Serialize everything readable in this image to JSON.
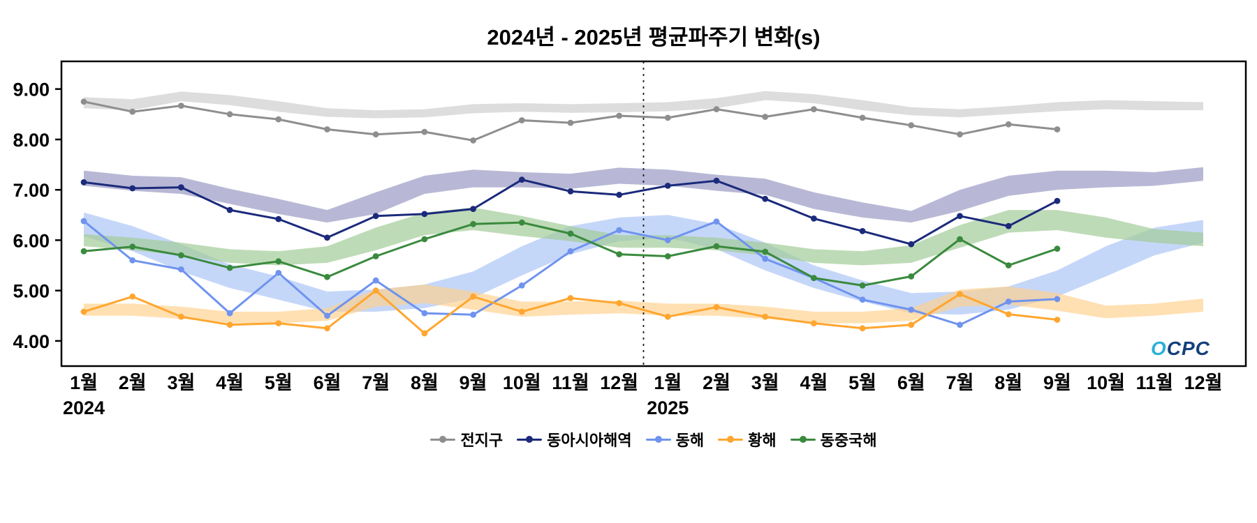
{
  "title": "2024년 - 2025년 평균파주기 변화(s)",
  "logo": {
    "text_o": "O",
    "text_cpc": "CPC"
  },
  "chart_data": {
    "type": "line",
    "title": "2024년 - 2025년 평균파주기 변화(s)",
    "xlabel": "",
    "ylabel": "",
    "x_labels": [
      "1월",
      "2월",
      "3월",
      "4월",
      "5월",
      "6월",
      "7월",
      "8월",
      "9월",
      "10월",
      "11월",
      "12월",
      "1월",
      "2월",
      "3월",
      "4월",
      "5월",
      "6월",
      "7월",
      "8월",
      "9월",
      "10월",
      "11월",
      "12월"
    ],
    "year_labels": [
      {
        "text": "2024",
        "month_index": 0
      },
      {
        "text": "2025",
        "month_index": 12
      }
    ],
    "ylim": [
      3.5,
      9.55
    ],
    "yticks": [
      4,
      5,
      6,
      7,
      8,
      9
    ],
    "ytick_labels": [
      "4.00",
      "5.00",
      "6.00",
      "7.00",
      "8.00",
      "9.00"
    ],
    "divider_index": 11.5,
    "legend_position": "bottom",
    "grid": false,
    "series": [
      {
        "id": "global",
        "name": "전지구",
        "color": "#8e8e8e",
        "band_color": "#d9d9d9",
        "band_opacity": 0.9,
        "values": [
          8.75,
          8.55,
          8.67,
          8.5,
          8.4,
          8.2,
          8.1,
          8.15,
          7.98,
          8.38,
          8.33,
          8.47,
          8.43,
          8.6,
          8.45,
          8.6,
          8.43,
          8.28,
          8.1,
          8.3,
          8.2,
          null,
          null,
          null
        ],
        "band_lower": [
          8.62,
          8.58,
          8.76,
          8.68,
          8.55,
          8.45,
          8.42,
          8.44,
          8.52,
          8.55,
          8.53,
          8.54,
          8.56,
          8.62,
          8.78,
          8.72,
          8.58,
          8.48,
          8.44,
          8.5,
          8.56,
          8.6,
          8.58,
          8.58
        ],
        "band_upper": [
          8.84,
          8.8,
          8.95,
          8.88,
          8.76,
          8.62,
          8.58,
          8.6,
          8.7,
          8.72,
          8.7,
          8.72,
          8.74,
          8.82,
          8.96,
          8.9,
          8.78,
          8.64,
          8.6,
          8.66,
          8.74,
          8.78,
          8.76,
          8.74
        ]
      },
      {
        "id": "east-asia",
        "name": "동아시아해역",
        "color": "#1b2a7b",
        "band_color": "#8888bb",
        "band_opacity": 0.6,
        "values": [
          7.15,
          7.03,
          7.05,
          6.6,
          6.42,
          6.05,
          6.48,
          6.52,
          6.62,
          7.2,
          6.97,
          6.9,
          7.08,
          7.18,
          6.82,
          6.43,
          6.18,
          5.92,
          6.48,
          6.28,
          6.78,
          null,
          null,
          null
        ],
        "band_lower": [
          7.08,
          6.98,
          6.92,
          6.72,
          6.52,
          6.35,
          6.52,
          6.92,
          7.05,
          7.05,
          7.02,
          7.12,
          7.08,
          6.98,
          6.9,
          6.62,
          6.45,
          6.35,
          6.58,
          6.88,
          7.0,
          7.05,
          7.08,
          7.18
        ],
        "band_upper": [
          7.38,
          7.28,
          7.25,
          7.02,
          6.82,
          6.6,
          6.95,
          7.28,
          7.4,
          7.35,
          7.32,
          7.44,
          7.4,
          7.3,
          7.22,
          6.95,
          6.75,
          6.58,
          7.0,
          7.28,
          7.38,
          7.38,
          7.35,
          7.45
        ]
      },
      {
        "id": "east-sea",
        "name": "동해",
        "color": "#6f93ee",
        "band_color": "#9fbdf5",
        "band_opacity": 0.6,
        "values": [
          6.38,
          5.6,
          5.42,
          4.55,
          5.35,
          4.5,
          5.2,
          4.55,
          4.52,
          5.1,
          5.78,
          6.2,
          6.0,
          6.37,
          5.63,
          5.25,
          4.82,
          4.62,
          4.32,
          4.78,
          4.83,
          null,
          null,
          null
        ],
        "band_lower": [
          6.08,
          5.78,
          5.38,
          5.05,
          4.82,
          4.58,
          4.58,
          4.65,
          4.85,
          5.3,
          5.72,
          5.98,
          6.05,
          5.82,
          5.4,
          5.05,
          4.78,
          4.55,
          4.52,
          4.62,
          4.88,
          5.28,
          5.7,
          5.95
        ],
        "band_upper": [
          6.55,
          6.28,
          5.92,
          5.52,
          5.28,
          4.98,
          5.02,
          5.12,
          5.38,
          5.88,
          6.28,
          6.45,
          6.5,
          6.32,
          5.95,
          5.5,
          5.2,
          4.95,
          4.98,
          5.08,
          5.4,
          5.88,
          6.25,
          6.4
        ]
      },
      {
        "id": "yellow-sea",
        "name": "황해",
        "color": "#ffa630",
        "band_color": "#ffd089",
        "band_opacity": 0.65,
        "values": [
          4.58,
          4.88,
          4.48,
          4.32,
          4.35,
          4.25,
          5.0,
          4.15,
          4.88,
          4.58,
          4.85,
          4.75,
          4.48,
          4.67,
          4.48,
          4.35,
          4.25,
          4.32,
          4.93,
          4.53,
          4.42,
          null,
          null,
          null
        ],
        "band_lower": [
          4.5,
          4.5,
          4.44,
          4.35,
          4.35,
          4.4,
          4.68,
          4.75,
          4.62,
          4.48,
          4.52,
          4.55,
          4.5,
          4.5,
          4.44,
          4.35,
          4.35,
          4.4,
          4.68,
          4.72,
          4.6,
          4.45,
          4.5,
          4.58
        ],
        "band_upper": [
          4.74,
          4.74,
          4.68,
          4.58,
          4.58,
          4.65,
          5.02,
          5.12,
          4.98,
          4.78,
          4.78,
          4.8,
          4.74,
          4.74,
          4.68,
          4.58,
          4.58,
          4.65,
          5.02,
          5.08,
          4.95,
          4.7,
          4.74,
          4.84
        ]
      },
      {
        "id": "east-china-sea",
        "name": "동중국해",
        "color": "#3a8a3e",
        "band_color": "#a3cc98",
        "band_opacity": 0.7,
        "values": [
          5.78,
          5.87,
          5.7,
          5.45,
          5.58,
          5.27,
          5.68,
          6.02,
          6.32,
          6.35,
          6.13,
          5.72,
          5.68,
          5.88,
          5.77,
          5.25,
          5.1,
          5.28,
          6.02,
          5.5,
          5.83,
          null,
          null,
          null
        ],
        "band_lower": [
          5.88,
          5.8,
          5.7,
          5.55,
          5.5,
          5.55,
          5.8,
          6.1,
          6.2,
          6.08,
          5.98,
          5.85,
          5.85,
          5.8,
          5.7,
          5.55,
          5.5,
          5.55,
          5.85,
          6.15,
          6.2,
          6.05,
          5.95,
          5.88
        ],
        "band_upper": [
          6.12,
          6.05,
          5.95,
          5.82,
          5.78,
          5.88,
          6.25,
          6.55,
          6.65,
          6.48,
          6.28,
          6.1,
          6.1,
          6.05,
          5.95,
          5.82,
          5.78,
          5.9,
          6.3,
          6.6,
          6.6,
          6.45,
          6.22,
          6.15
        ]
      }
    ]
  }
}
